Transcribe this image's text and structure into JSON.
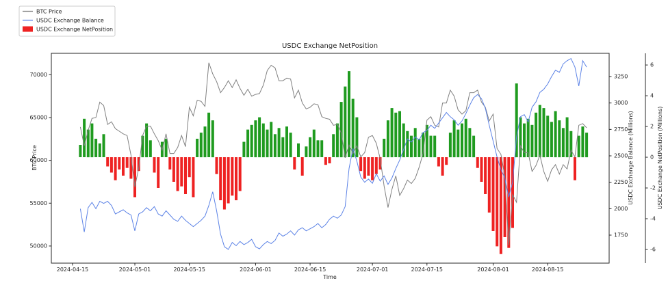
{
  "title": "USDC Exchange NetPosition",
  "chart_data": {
    "type": "mixed-line-bar",
    "title": "USDC Exchange NetPosition",
    "xlabel": "Time",
    "x_tick_labels": [
      "2024-04-15",
      "2024-05-01",
      "2024-05-15",
      "2024-06-01",
      "2024-06-15",
      "2024-07-01",
      "2024-07-15",
      "2024-08-01",
      "2024-08-15"
    ],
    "start_date": "2024-04-17",
    "interval_days": 1,
    "grid": false,
    "legend_position": "upper-left",
    "axes": {
      "left": {
        "label": "BTC Price",
        "ticks": [
          50000,
          55000,
          60000,
          65000,
          70000
        ],
        "range": [
          48000,
          72500
        ]
      },
      "right_balance": {
        "label": "USDC Exchange Balance (Millions)",
        "ticks": [
          1750,
          2000,
          2250,
          2500,
          2750,
          3000,
          3250
        ],
        "range": [
          1485,
          3470
        ]
      },
      "right_netposition": {
        "label": "USDC Exchange NetPosition (Millions)",
        "ticks": [
          -6,
          -4,
          -2,
          0,
          2,
          4,
          6
        ],
        "range": [
          -6.89,
          6.76
        ]
      }
    },
    "series": [
      {
        "name": "BTC Price",
        "type": "line",
        "axis": "left",
        "color": "#808080",
        "values": [
          63900,
          61700,
          63500,
          64900,
          65000,
          66800,
          66400,
          64200,
          64500,
          63700,
          63400,
          63100,
          62900,
          60600,
          56900,
          59100,
          62900,
          64000,
          64000,
          63100,
          62300,
          61200,
          63100,
          60800,
          60800,
          61500,
          62900,
          61600,
          66200,
          65200,
          67000,
          66900,
          66300,
          71400,
          70100,
          69200,
          67900,
          68500,
          69300,
          68500,
          69400,
          68400,
          67600,
          68300,
          67500,
          67700,
          67800,
          68800,
          70500,
          71100,
          70800,
          69300,
          69300,
          69600,
          69500,
          67300,
          68200,
          66700,
          66000,
          66200,
          66600,
          66500,
          65100,
          64900,
          64800,
          64100,
          64200,
          63200,
          60300,
          61800,
          60800,
          61700,
          60400,
          60900,
          62700,
          62900,
          62000,
          60200,
          57000,
          54500,
          56600,
          58200,
          55900,
          56700,
          57700,
          57300,
          57900,
          59200,
          60800,
          64700,
          65100,
          64100,
          63900,
          66700,
          66700,
          68200,
          67500,
          65900,
          65400,
          65800,
          67900,
          67900,
          68200,
          66800,
          66200,
          64600,
          65400,
          61400,
          60700,
          58100,
          50100,
          56000,
          55100,
          61700,
          60900,
          60900,
          58700,
          59400,
          60600,
          58700,
          57550,
          58900,
          59500,
          58400,
          59500,
          59000,
          61200,
          60400,
          64100,
          64300,
          63800
        ]
      },
      {
        "name": "USDC Exchange Balance",
        "type": "line",
        "axis": "right_balance",
        "color": "#5b82e6",
        "values": [
          2000,
          1780,
          2010,
          2060,
          2000,
          2070,
          2050,
          2070,
          2030,
          1950,
          1970,
          1990,
          1960,
          1940,
          1790,
          1950,
          1970,
          2010,
          1980,
          2020,
          1950,
          1930,
          1980,
          1940,
          1900,
          1880,
          1930,
          1890,
          1860,
          1830,
          1860,
          1890,
          1930,
          2030,
          2160,
          1980,
          1760,
          1640,
          1615,
          1680,
          1650,
          1690,
          1660,
          1680,
          1710,
          1640,
          1620,
          1660,
          1690,
          1670,
          1700,
          1770,
          1740,
          1760,
          1790,
          1750,
          1800,
          1820,
          1790,
          1810,
          1830,
          1860,
          1820,
          1850,
          1900,
          1930,
          1910,
          1940,
          2020,
          2380,
          2570,
          2450,
          2300,
          2250,
          2280,
          2240,
          2330,
          2260,
          2310,
          2230,
          2290,
          2380,
          2460,
          2560,
          2660,
          2630,
          2680,
          2650,
          2720,
          2740,
          2790,
          2760,
          2810,
          2860,
          2910,
          2870,
          2840,
          2790,
          2830,
          2900,
          2980,
          3050,
          3080,
          3040,
          2950,
          2790,
          2640,
          2490,
          2370,
          2290,
          2110,
          2250,
          2680,
          2870,
          2890,
          2820,
          2960,
          3010,
          3100,
          3130,
          3180,
          3250,
          3310,
          3290,
          3370,
          3400,
          3420,
          3340,
          3160,
          3400,
          3340
        ]
      },
      {
        "name": "USDC Exchange NetPosition",
        "type": "bar",
        "axis": "right_netposition",
        "color_positive": "#1f9b1f",
        "color_negative": "#ee2222",
        "values": [
          0.8,
          2.5,
          1.8,
          2.2,
          1.2,
          0.9,
          1.5,
          -0.6,
          -1.0,
          -1.5,
          -0.8,
          -1.2,
          -0.7,
          -1.4,
          -2.6,
          -0.9,
          1.4,
          2.2,
          1.1,
          -1.0,
          -2.0,
          1.0,
          1.2,
          -0.8,
          -1.6,
          -2.2,
          -1.9,
          -2.4,
          -1.3,
          -2.6,
          1.2,
          1.6,
          2.0,
          2.9,
          2.4,
          -1.1,
          -2.8,
          -3.4,
          -3.0,
          -2.5,
          -2.8,
          -2.2,
          1.0,
          1.8,
          2.1,
          2.4,
          2.6,
          2.2,
          1.8,
          2.3,
          1.5,
          1.9,
          1.3,
          2.0,
          1.6,
          -0.8,
          0.9,
          -1.2,
          0.7,
          1.3,
          1.8,
          1.1,
          1.1,
          -0.5,
          -0.4,
          1.5,
          2.2,
          3.6,
          4.6,
          5.6,
          3.8,
          2.6,
          -0.9,
          -1.4,
          -1.2,
          -1.5,
          -1.1,
          -0.8,
          1.2,
          2.4,
          3.2,
          2.9,
          3.0,
          2.2,
          1.7,
          1.4,
          1.9,
          1.2,
          1.6,
          2.1,
          1.4,
          1.4,
          -0.6,
          -1.2,
          -0.5,
          1.6,
          2.4,
          1.8,
          2.2,
          2.5,
          1.9,
          1.4,
          -0.7,
          -1.6,
          -2.4,
          -3.6,
          -4.8,
          -5.8,
          -6.3,
          -5.2,
          -5.9,
          -4.6,
          4.8,
          2.6,
          2.2,
          2.5,
          2.1,
          2.9,
          3.4,
          3.2,
          2.7,
          2.3,
          3.0,
          2.4,
          1.9,
          2.6,
          1.7,
          -1.5,
          1.4,
          2.0,
          1.6
        ]
      }
    ],
    "legend": {
      "items": [
        "BTC Price",
        "USDC Exchange Balance",
        "USDC Exchange NetPosition"
      ]
    }
  }
}
